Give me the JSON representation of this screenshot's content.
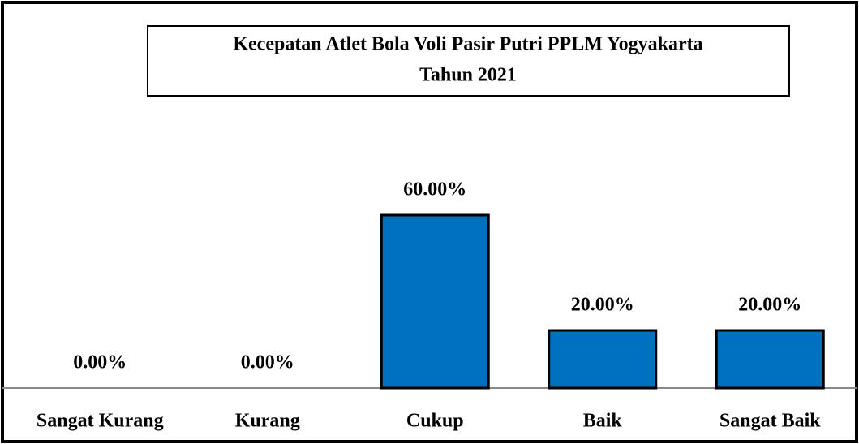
{
  "chart_data": {
    "type": "bar",
    "title": [
      "Kecepatan Atlet Bola Voli Pasir Putri PPLM Yogyakarta",
      "Tahun 2021"
    ],
    "categories": [
      "Sangat Kurang",
      "Kurang",
      "Cukup",
      "Baik",
      "Sangat Baik"
    ],
    "values": [
      0,
      0,
      60,
      20,
      20
    ],
    "value_labels": [
      "0.00%",
      "0.00%",
      "60.00%",
      "20.00%",
      "20.00%"
    ],
    "color": "#0070c0"
  }
}
